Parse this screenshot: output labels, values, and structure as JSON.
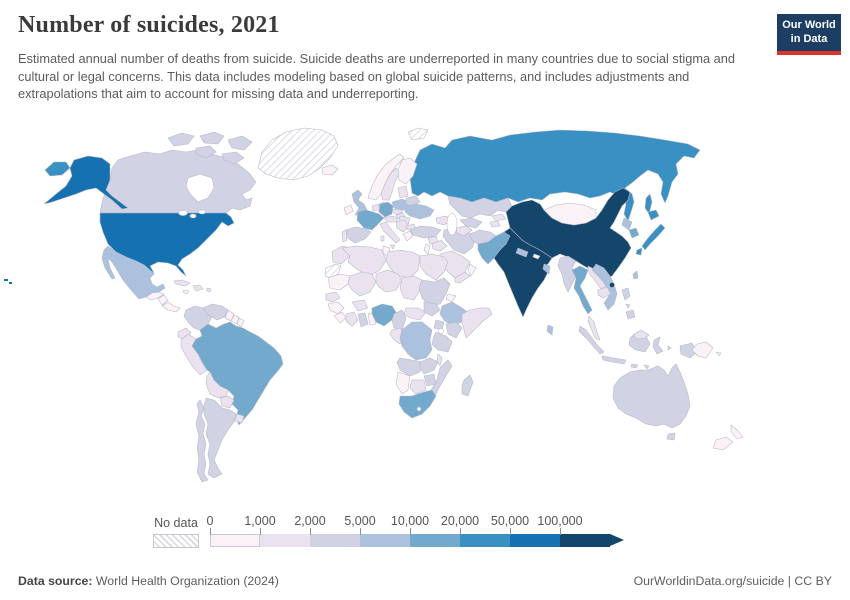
{
  "header": {
    "title": "Number of suicides, 2021",
    "subtitle": "Estimated annual number of deaths from suicide. Suicide deaths are underreported in many countries due to social stigma and cultural or legal concerns. This data includes modeling based on global suicide patterns, and includes adjustments and extrapolations that aim to account for missing data and underreporting."
  },
  "logo": {
    "line1": "Our World",
    "line2": "in Data",
    "bg": "#1d3d63",
    "accent": "#d8352c"
  },
  "footer": {
    "source_label": "Data source:",
    "source_value": " World Health Organization (2024)",
    "right_text": "OurWorldinData.org/suicide | CC BY"
  },
  "chart_data": {
    "type": "choropleth",
    "title": "Number of suicides, 2021",
    "unit": "suicide deaths per year",
    "year": 2021,
    "no_data_label": "No data",
    "legend_ticks": [
      "0",
      "1,000",
      "2,000",
      "5,000",
      "10,000",
      "20,000",
      "50,000",
      "100,000"
    ],
    "bucket_ranges": [
      "0–1,000",
      "1,000–2,000",
      "2,000–5,000",
      "5,000–10,000",
      "10,000–20,000",
      "20,000–50,000",
      "50,000–100,000",
      "100,000+"
    ],
    "bucket_colors": [
      "#fbf2f8",
      "#eae2ef",
      "#d2d2e5",
      "#abc1dd",
      "#74a9ce",
      "#3990c2",
      "#1671b1",
      "#14466b"
    ],
    "no_data_pattern": "diagonal-hatch",
    "countries": {
      "usa": {
        "n": "United States",
        "b": "50,000–100,000",
        "c": "#1671b1"
      },
      "canada": {
        "n": "Canada",
        "b": "2,000–5,000",
        "c": "#d2d2e5"
      },
      "greenland": {
        "n": "Greenland",
        "b": "No data",
        "c": "hatch"
      },
      "mexico": {
        "n": "Mexico",
        "b": "5,000–10,000",
        "c": "#abc1dd"
      },
      "guatemala": {
        "n": "Guatemala",
        "b": "0–1,000",
        "c": "#fbf2f8"
      },
      "nicaragua": {
        "n": "Nicaragua",
        "b": "0–1,000",
        "c": "#fbf2f8"
      },
      "panama": {
        "n": "Panama",
        "b": "0–1,000",
        "c": "#fbf2f8"
      },
      "cuba": {
        "n": "Cuba",
        "b": "1,000–2,000",
        "c": "#eae2ef"
      },
      "jamaica": {
        "n": "Jamaica",
        "b": "0–1,000",
        "c": "#fbf2f8"
      },
      "hispaniola": {
        "n": "Haiti / Dominican Republic",
        "b": "1,000–2,000",
        "c": "#eae2ef"
      },
      "colombia": {
        "n": "Colombia",
        "b": "2,000–5,000",
        "c": "#d2d2e5"
      },
      "venezuela": {
        "n": "Venezuela",
        "b": "2,000–5,000",
        "c": "#d2d2e5"
      },
      "guyana": {
        "n": "Guyana",
        "b": "0–1,000",
        "c": "#fbf2f8"
      },
      "suriname": {
        "n": "Suriname",
        "b": "0–1,000",
        "c": "#fbf2f8"
      },
      "french_guiana": {
        "n": "French Guiana",
        "b": "0–1,000",
        "c": "#fbf2f8"
      },
      "ecuador": {
        "n": "Ecuador",
        "b": "1,000–2,000",
        "c": "#eae2ef"
      },
      "peru": {
        "n": "Peru",
        "b": "1,000–2,000",
        "c": "#eae2ef"
      },
      "brazil": {
        "n": "Brazil",
        "b": "10,000–20,000",
        "c": "#74a9ce"
      },
      "bolivia": {
        "n": "Bolivia",
        "b": "1,000–2,000",
        "c": "#eae2ef"
      },
      "paraguay": {
        "n": "Paraguay",
        "b": "1,000–2,000",
        "c": "#eae2ef"
      },
      "uruguay": {
        "n": "Uruguay",
        "b": "1,000–2,000",
        "c": "#eae2ef"
      },
      "argentina": {
        "n": "Argentina",
        "b": "2,000–5,000",
        "c": "#d2d2e5"
      },
      "chile": {
        "n": "Chile",
        "b": "2,000–5,000",
        "c": "#d2d2e5"
      },
      "iceland": {
        "n": "Iceland",
        "b": "0–1,000",
        "c": "#fbf2f8"
      },
      "norway": {
        "n": "Norway",
        "b": "0–1,000",
        "c": "#fbf2f8"
      },
      "sweden": {
        "n": "Sweden",
        "b": "1,000–2,000",
        "c": "#eae2ef"
      },
      "finland": {
        "n": "Finland",
        "b": "0–1,000",
        "c": "#fbf2f8"
      },
      "denmark": {
        "n": "Denmark",
        "b": "0–1,000",
        "c": "#fbf2f8"
      },
      "uk": {
        "n": "United Kingdom",
        "b": "5,000–10,000",
        "c": "#abc1dd"
      },
      "ireland": {
        "n": "Ireland",
        "b": "0–1,000",
        "c": "#fbf2f8"
      },
      "benelux": {
        "n": "Netherlands / Belgium",
        "b": "1,000–2,000",
        "c": "#eae2ef"
      },
      "germany": {
        "n": "Germany",
        "b": "10,000–20,000",
        "c": "#74a9ce"
      },
      "france": {
        "n": "France",
        "b": "10,000–20,000",
        "c": "#74a9ce"
      },
      "spain": {
        "n": "Spain",
        "b": "2,000–5,000",
        "c": "#d2d2e5"
      },
      "portugal": {
        "n": "Portugal",
        "b": "1,000–2,000",
        "c": "#eae2ef"
      },
      "italy": {
        "n": "Italy",
        "b": "1,000–2,000",
        "c": "#eae2ef"
      },
      "switzerland_austria": {
        "n": "Switzerland / Austria",
        "b": "1,000–2,000",
        "c": "#eae2ef"
      },
      "czechia": {
        "n": "Czechia",
        "b": "1,000–2,000",
        "c": "#eae2ef"
      },
      "poland": {
        "n": "Poland",
        "b": "5,000–10,000",
        "c": "#abc1dd"
      },
      "baltics": {
        "n": "Baltic states",
        "b": "1,000–2,000",
        "c": "#eae2ef"
      },
      "belarus": {
        "n": "Belarus",
        "b": "2,000–5,000",
        "c": "#d2d2e5"
      },
      "ukraine": {
        "n": "Ukraine",
        "b": "5,000–10,000",
        "c": "#abc1dd"
      },
      "romania": {
        "n": "Romania",
        "b": "1,000–2,000",
        "c": "#eae2ef"
      },
      "hungary": {
        "n": "Hungary",
        "b": "1,000–2,000",
        "c": "#eae2ef"
      },
      "balkans": {
        "n": "Balkans",
        "b": "1,000–2,000",
        "c": "#eae2ef"
      },
      "bulgaria": {
        "n": "Bulgaria",
        "b": "1,000–2,000",
        "c": "#eae2ef"
      },
      "greece": {
        "n": "Greece",
        "b": "0–1,000",
        "c": "#fbf2f8"
      },
      "russia": {
        "n": "Russia",
        "b": "20,000–50,000",
        "c": "#3990c2"
      },
      "kazakhstan": {
        "n": "Kazakhstan",
        "b": "2,000–5,000",
        "c": "#d2d2e5"
      },
      "uzbekistan": {
        "n": "Uzbekistan",
        "b": "2,000–5,000",
        "c": "#d2d2e5"
      },
      "turkmenistan": {
        "n": "Turkmenistan",
        "b": "1,000–2,000",
        "c": "#eae2ef"
      },
      "kyrgyzstan": {
        "n": "Kyrgyzstan",
        "b": "1,000–2,000",
        "c": "#eae2ef"
      },
      "tajikistan": {
        "n": "Tajikistan",
        "b": "1,000–2,000",
        "c": "#eae2ef"
      },
      "caucasus": {
        "n": "Caucasus",
        "b": "1,000–2,000",
        "c": "#eae2ef"
      },
      "turkey": {
        "n": "Turkey",
        "b": "2,000–5,000",
        "c": "#d2d2e5"
      },
      "syria": {
        "n": "Syria",
        "b": "1,000–2,000",
        "c": "#eae2ef"
      },
      "iraq": {
        "n": "Iraq",
        "b": "1,000–2,000",
        "c": "#eae2ef"
      },
      "iran": {
        "n": "Iran",
        "b": "2,000–5,000",
        "c": "#d2d2e5"
      },
      "israel_jordan": {
        "n": "Israel / Jordan",
        "b": "0–1,000",
        "c": "#fbf2f8"
      },
      "saudi_arabia": {
        "n": "Saudi Arabia",
        "b": "1,000–2,000",
        "c": "#eae2ef"
      },
      "yemen": {
        "n": "Yemen",
        "b": "1,000–2,000",
        "c": "#eae2ef"
      },
      "oman": {
        "n": "Oman",
        "b": "0–1,000",
        "c": "#fbf2f8"
      },
      "afghanistan": {
        "n": "Afghanistan",
        "b": "2,000–5,000",
        "c": "#d2d2e5"
      },
      "pakistan": {
        "n": "Pakistan",
        "b": "10,000–20,000",
        "c": "#74a9ce"
      },
      "india": {
        "n": "India",
        "b": "100,000+",
        "c": "#14466b"
      },
      "nepal": {
        "n": "Nepal",
        "b": "5,000–10,000",
        "c": "#abc1dd"
      },
      "bhutan": {
        "n": "Bhutan",
        "b": "0–1,000",
        "c": "#fbf2f8"
      },
      "bangladesh": {
        "n": "Bangladesh",
        "b": "5,000–10,000",
        "c": "#abc1dd"
      },
      "sri_lanka": {
        "n": "Sri Lanka",
        "b": "5,000–10,000",
        "c": "#abc1dd"
      },
      "myanmar": {
        "n": "Myanmar",
        "b": "2,000–5,000",
        "c": "#d2d2e5"
      },
      "thailand": {
        "n": "Thailand",
        "b": "10,000–20,000",
        "c": "#74a9ce"
      },
      "laos": {
        "n": "Laos",
        "b": "1,000–2,000",
        "c": "#eae2ef"
      },
      "cambodia": {
        "n": "Cambodia",
        "b": "1,000–2,000",
        "c": "#eae2ef"
      },
      "vietnam": {
        "n": "Vietnam",
        "b": "5,000–10,000",
        "c": "#abc1dd"
      },
      "malaysia": {
        "n": "Malaysia",
        "b": "1,000–2,000",
        "c": "#eae2ef"
      },
      "china": {
        "n": "China",
        "b": "100,000+",
        "c": "#14466b"
      },
      "mongolia": {
        "n": "Mongolia",
        "b": "0–1,000",
        "c": "#fbf2f8"
      },
      "north_korea": {
        "n": "North Korea",
        "b": "5,000–10,000",
        "c": "#abc1dd"
      },
      "south_korea": {
        "n": "South Korea",
        "b": "10,000–20,000",
        "c": "#74a9ce"
      },
      "japan": {
        "n": "Japan",
        "b": "20,000–50,000",
        "c": "#3990c2"
      },
      "taiwan": {
        "n": "Taiwan",
        "b": "5,000–10,000",
        "c": "#abc1dd"
      },
      "philippines": {
        "n": "Philippines",
        "b": "2,000–5,000",
        "c": "#d2d2e5"
      },
      "indonesia": {
        "n": "Indonesia",
        "b": "2,000–5,000",
        "c": "#d2d2e5"
      },
      "papua_new_guinea": {
        "n": "Papua New Guinea",
        "b": "0–1,000",
        "c": "#fbf2f8"
      },
      "australia": {
        "n": "Australia",
        "b": "2,000–5,000",
        "c": "#d2d2e5"
      },
      "new_zealand": {
        "n": "New Zealand",
        "b": "0–1,000",
        "c": "#fbf2f8"
      },
      "morocco": {
        "n": "Morocco",
        "b": "1,000–2,000",
        "c": "#eae2ef"
      },
      "western_sahara": {
        "n": "Western Sahara",
        "b": "No data",
        "c": "hatch"
      },
      "algeria": {
        "n": "Algeria",
        "b": "1,000–2,000",
        "c": "#eae2ef"
      },
      "tunisia": {
        "n": "Tunisia",
        "b": "0–1,000",
        "c": "#fbf2f8"
      },
      "libya": {
        "n": "Libya",
        "b": "1,000–2,000",
        "c": "#eae2ef"
      },
      "egypt": {
        "n": "Egypt",
        "b": "1,000–2,000",
        "c": "#eae2ef"
      },
      "mauritania": {
        "n": "Mauritania",
        "b": "0–1,000",
        "c": "#fbf2f8"
      },
      "mali": {
        "n": "Mali",
        "b": "1,000–2,000",
        "c": "#eae2ef"
      },
      "niger": {
        "n": "Niger",
        "b": "1,000–2,000",
        "c": "#eae2ef"
      },
      "chad": {
        "n": "Chad",
        "b": "1,000–2,000",
        "c": "#eae2ef"
      },
      "sudan": {
        "n": "Sudan",
        "b": "2,000–5,000",
        "c": "#d2d2e5"
      },
      "eritrea": {
        "n": "Eritrea",
        "b": "0–1,000",
        "c": "#fbf2f8"
      },
      "senegal": {
        "n": "Senegal",
        "b": "1,000–2,000",
        "c": "#eae2ef"
      },
      "guinea": {
        "n": "Guinea",
        "b": "0–1,000",
        "c": "#fbf2f8"
      },
      "sierra_leone": {
        "n": "Sierra Leone / Liberia",
        "b": "0–1,000",
        "c": "#fbf2f8"
      },
      "ivory_coast": {
        "n": "Côte d'Ivoire",
        "b": "1,000–2,000",
        "c": "#eae2ef"
      },
      "ghana": {
        "n": "Ghana",
        "b": "2,000–5,000",
        "c": "#d2d2e5"
      },
      "burkina_faso": {
        "n": "Burkina Faso",
        "b": "1,000–2,000",
        "c": "#eae2ef"
      },
      "togo_benin": {
        "n": "Togo / Benin",
        "b": "0–1,000",
        "c": "#fbf2f8"
      },
      "nigeria": {
        "n": "Nigeria",
        "b": "10,000–20,000",
        "c": "#74a9ce"
      },
      "cameroon": {
        "n": "Cameroon",
        "b": "2,000–5,000",
        "c": "#d2d2e5"
      },
      "car": {
        "n": "Central African Republic",
        "b": "1,000–2,000",
        "c": "#eae2ef"
      },
      "south_sudan": {
        "n": "South Sudan",
        "b": "2,000–5,000",
        "c": "#d2d2e5"
      },
      "ethiopia": {
        "n": "Ethiopia",
        "b": "5,000–10,000",
        "c": "#abc1dd"
      },
      "somalia": {
        "n": "Somalia",
        "b": "1,000–2,000",
        "c": "#eae2ef"
      },
      "kenya": {
        "n": "Kenya",
        "b": "2,000–5,000",
        "c": "#d2d2e5"
      },
      "uganda": {
        "n": "Uganda",
        "b": "2,000–5,000",
        "c": "#d2d2e5"
      },
      "gabon_congo": {
        "n": "Gabon / Congo",
        "b": "1,000–2,000",
        "c": "#eae2ef"
      },
      "drc": {
        "n": "Democratic Republic of Congo",
        "b": "5,000–10,000",
        "c": "#abc1dd"
      },
      "tanzania": {
        "n": "Tanzania",
        "b": "2,000–5,000",
        "c": "#d2d2e5"
      },
      "angola": {
        "n": "Angola",
        "b": "2,000–5,000",
        "c": "#d2d2e5"
      },
      "zambia": {
        "n": "Zambia",
        "b": "2,000–5,000",
        "c": "#d2d2e5"
      },
      "malawi": {
        "n": "Malawi",
        "b": "1,000–2,000",
        "c": "#eae2ef"
      },
      "mozambique": {
        "n": "Mozambique",
        "b": "2,000–5,000",
        "c": "#d2d2e5"
      },
      "zimbabwe": {
        "n": "Zimbabwe",
        "b": "2,000–5,000",
        "c": "#d2d2e5"
      },
      "namibia": {
        "n": "Namibia",
        "b": "0–1,000",
        "c": "#fbf2f8"
      },
      "botswana": {
        "n": "Botswana",
        "b": "1,000–2,000",
        "c": "#eae2ef"
      },
      "south_africa": {
        "n": "South Africa",
        "b": "10,000–20,000",
        "c": "#74a9ce"
      },
      "madagascar": {
        "n": "Madagascar",
        "b": "2,000–5,000",
        "c": "#d2d2e5"
      },
      "svalbard": {
        "n": "Svalbard",
        "b": "No data",
        "c": "hatch"
      }
    }
  }
}
